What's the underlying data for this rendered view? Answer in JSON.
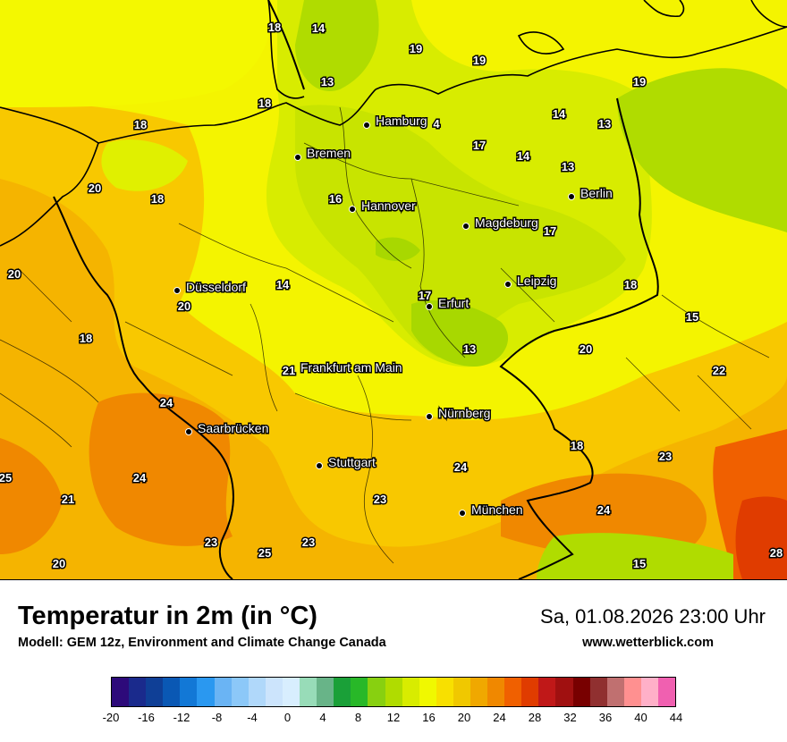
{
  "title": "Temperatur in 2m (in °C)",
  "model": "Modell: GEM 12z, Environment and Climate Change Canada",
  "datetime": "Sa, 01.08.2026 23:00 Uhr",
  "website": "www.wetterblick.com",
  "legend": {
    "ticks": [
      "-20",
      "-16",
      "-12",
      "-8",
      "-4",
      "0",
      "4",
      "8",
      "12",
      "16",
      "20",
      "24",
      "28",
      "32",
      "36",
      "40",
      "44"
    ],
    "colors": [
      "#2d0a7a",
      "#1a2a8c",
      "#0f3f96",
      "#0a58b4",
      "#1278d6",
      "#2a98f0",
      "#6ab4f4",
      "#8cc8f8",
      "#b0d8fa",
      "#cce4fc",
      "#d8eefe",
      "#98dcb8",
      "#68b488",
      "#1aa038",
      "#28b828",
      "#88d010",
      "#b0dc00",
      "#d8ec00",
      "#f0f800",
      "#f8e000",
      "#f0c800",
      "#f0a800",
      "#f08800",
      "#f06000",
      "#e03c00",
      "#c01818",
      "#a01010",
      "#780000",
      "#903030",
      "#c07070",
      "#ff9090",
      "#ffb0c8",
      "#f060b0"
    ]
  },
  "cities": [
    {
      "name": "Hamburg"
    },
    {
      "name": "Bremen"
    },
    {
      "name": "Hannover"
    },
    {
      "name": "Berlin"
    },
    {
      "name": "Magdeburg"
    },
    {
      "name": "Leipzig"
    },
    {
      "name": "Düsseldorf"
    },
    {
      "name": "Erfurt"
    },
    {
      "name": "Frankfurt am Main"
    },
    {
      "name": "Nürnberg"
    },
    {
      "name": "Saarbrücken"
    },
    {
      "name": "Stuttgart"
    },
    {
      "name": "München"
    }
  ],
  "temperature_labels": [
    "18",
    "14",
    "19",
    "19",
    "13",
    "19",
    "18",
    "18",
    "14",
    "13",
    "4",
    "17",
    "14",
    "13",
    "20",
    "18",
    "16",
    "17",
    "20",
    "14",
    "18",
    "20",
    "17",
    "15",
    "18",
    "13",
    "20",
    "22",
    "21",
    "24",
    "24",
    "18",
    "23",
    "25",
    "24",
    "21",
    "23",
    "23",
    "24",
    "23",
    "25",
    "20",
    "15",
    "28"
  ]
}
